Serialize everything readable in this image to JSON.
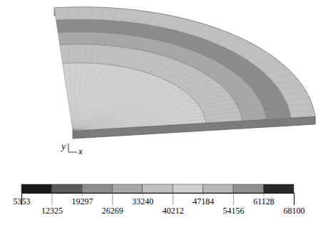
{
  "chart_data": {
    "type": "contour",
    "triad": {
      "x": "x",
      "y": "y"
    },
    "rings": {
      "radius": [
        0,
        0.55,
        0.7,
        0.8,
        0.9,
        1.0
      ],
      "values": [
        43000,
        37000,
        30000,
        22000,
        36000
      ]
    },
    "colorbar_range": [
      5353,
      68100
    ],
    "colorbar_ticks": [
      5353,
      12325,
      19297,
      26269,
      33240,
      40212,
      47184,
      54156,
      61128,
      68100
    ],
    "colors": [
      "#1a1a1a",
      "#5a5a5a",
      "#8c8c8c",
      "#a8a8a8",
      "#c0c0c0",
      "#d0d0d0",
      "#b8b8b8",
      "#909090",
      "#2a2a2a"
    ]
  }
}
